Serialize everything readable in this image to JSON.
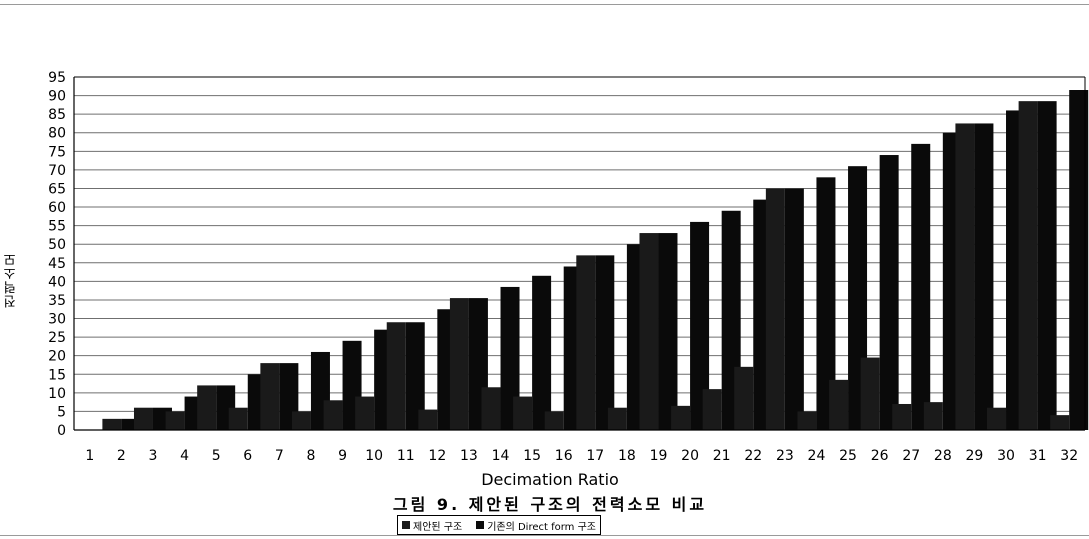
{
  "chart_data": {
    "type": "bar",
    "categories": [
      "1",
      "2",
      "3",
      "4",
      "5",
      "6",
      "7",
      "8",
      "9",
      "10",
      "11",
      "12",
      "13",
      "14",
      "15",
      "16",
      "17",
      "18",
      "19",
      "20",
      "21",
      "22",
      "23",
      "24",
      "25",
      "26",
      "27",
      "28",
      "29",
      "30",
      "31",
      "32"
    ],
    "series": [
      {
        "name": "제안된 구조",
        "color": "#1a1a1a",
        "values": [
          0,
          3,
          6,
          5,
          12,
          6,
          18,
          5,
          8,
          9,
          29,
          5.5,
          35.5,
          11.5,
          9,
          5,
          47,
          6,
          53,
          6.5,
          11,
          17,
          65,
          5,
          13.5,
          19.5,
          7,
          7.5,
          82.5,
          6,
          88.5,
          4
        ]
      },
      {
        "name": "기존의 Direct form 구조",
        "color": "#0a0a0a",
        "values": [
          0,
          3,
          6,
          9,
          12,
          15,
          18,
          21,
          24,
          27,
          29,
          32.5,
          35.5,
          38.5,
          41.5,
          44,
          47,
          50,
          53,
          56,
          59,
          62,
          65,
          68,
          71,
          74,
          77,
          80,
          82.5,
          86,
          88.5,
          91.5
        ]
      }
    ],
    "xlabel": "Decimation Ratio",
    "ylabel": "전력소모",
    "y_ticks": [
      "0",
      "5",
      "10",
      "15",
      "20",
      "25",
      "30",
      "35",
      "40",
      "45",
      "50",
      "55",
      "60",
      "65",
      "70",
      "75",
      "80",
      "85",
      "90",
      "95"
    ],
    "ylim": [
      0,
      95
    ],
    "grid": true,
    "legend_position": "bottom"
  },
  "caption": "그림 9. 제안된 구조의 전력소모 비교",
  "legend": [
    {
      "label": "제안된 구조",
      "color": "#1a1a1a"
    },
    {
      "label": "기존의 Direct form 구조",
      "color": "#0a0a0a"
    }
  ]
}
